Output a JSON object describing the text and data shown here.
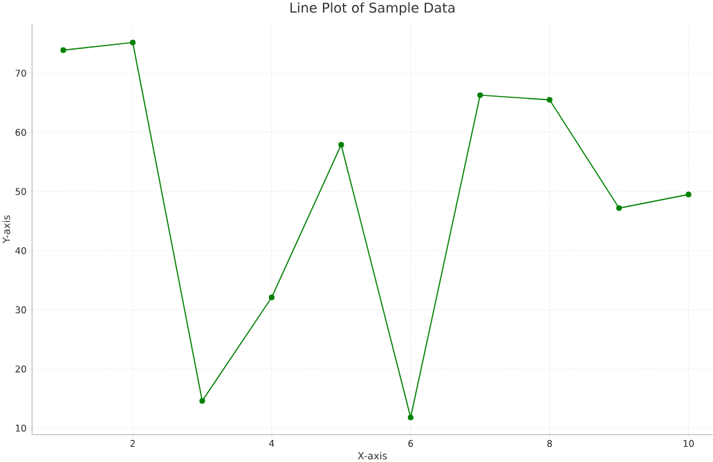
{
  "chart_data": {
    "type": "line",
    "title": "Line Plot of Sample Data",
    "xlabel": "X-axis",
    "ylabel": "Y-axis",
    "x": [
      1,
      2,
      3,
      4,
      5,
      6,
      7,
      8,
      9,
      10
    ],
    "series": [
      {
        "color": "#008000",
        "values": [
          73.9,
          75.2,
          14.6,
          32.1,
          57.9,
          11.8,
          66.3,
          65.5,
          47.2,
          49.5
        ]
      }
    ],
    "xlim": [
      0.55,
      10.35
    ],
    "ylim": [
      8.9,
      78.4
    ],
    "xticks": [
      2,
      4,
      6,
      8,
      10
    ],
    "yticks": [
      10,
      20,
      30,
      40,
      50,
      60,
      70
    ],
    "grid": true,
    "marker": "circle",
    "line_style": "solid"
  }
}
